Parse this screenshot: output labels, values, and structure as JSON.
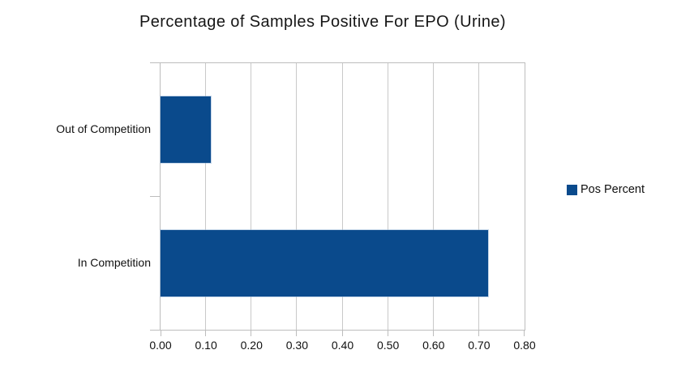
{
  "title": "Percentage of Samples Positive For EPO (Urine)",
  "legend": {
    "position": "right",
    "items": [
      {
        "label": "Pos Percent",
        "color": "#0a4a8c"
      }
    ]
  },
  "chart_data": {
    "type": "bar",
    "orientation": "horizontal",
    "title": "Percentage of Samples Positive For EPO (Urine)",
    "categories": [
      "Out of Competition",
      "In Competition"
    ],
    "series": [
      {
        "name": "Pos Percent",
        "color": "#0a4a8c",
        "values": [
          0.11,
          0.72
        ]
      }
    ],
    "xlabel": "",
    "ylabel": "",
    "xlim": [
      0.0,
      0.8
    ],
    "xticks": [
      0.0,
      0.1,
      0.2,
      0.3,
      0.4,
      0.5,
      0.6,
      0.7,
      0.8
    ],
    "xtick_labels": [
      "0.00",
      "0.10",
      "0.20",
      "0.30",
      "0.40",
      "0.50",
      "0.60",
      "0.70",
      "0.80"
    ],
    "grid": "vertical",
    "legend_position": "right",
    "background": "#ffffff"
  },
  "colors": {
    "bar": "#0a4a8c",
    "gridline": "#c9c9c9",
    "axis": "#bdbdbd",
    "text": "#101010"
  }
}
